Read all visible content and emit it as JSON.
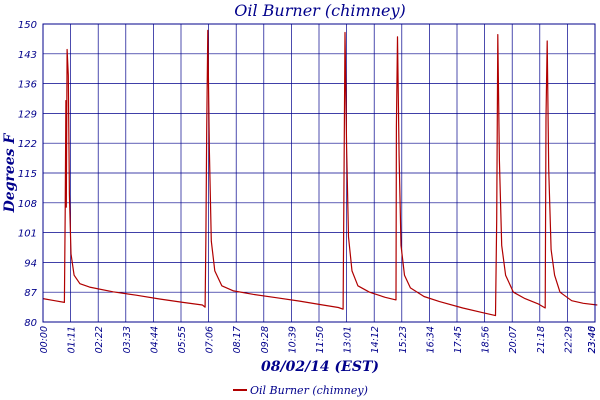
{
  "chart_data": {
    "type": "line",
    "title": "Oil Burner (chimney)",
    "xlabel": "08/02/14 (EST)",
    "ylabel": "Degrees F",
    "ylim": [
      80,
      150
    ],
    "xlim": [
      "00:00",
      "23:40"
    ],
    "x_ticks": [
      "00:00",
      "01:11",
      "02:22",
      "03:33",
      "04:44",
      "05:55",
      "07:06",
      "08:17",
      "09:28",
      "10:39",
      "11:50",
      "13:01",
      "14:12",
      "15:23",
      "16:34",
      "17:45",
      "18:56",
      "20:07",
      "21:18",
      "22:29",
      "23:40",
      "23:46"
    ],
    "y_ticks": [
      80,
      87,
      94,
      101,
      108,
      115,
      122,
      129,
      136,
      143,
      150
    ],
    "grid": true,
    "legend": "bottom",
    "colors": {
      "series": "#b00000",
      "axis": "#00008b",
      "grid": "#00008b"
    },
    "series": [
      {
        "name": "Oil Burner (chimney)",
        "points": [
          [
            "00:00",
            85.5
          ],
          [
            "00:30",
            85.0
          ],
          [
            "00:55",
            84.6
          ],
          [
            "00:57",
            106
          ],
          [
            "00:59",
            132
          ],
          [
            "01:00",
            107
          ],
          [
            "01:02",
            144
          ],
          [
            "01:05",
            138
          ],
          [
            "01:08",
            110
          ],
          [
            "01:12",
            96
          ],
          [
            "01:20",
            91
          ],
          [
            "01:35",
            89
          ],
          [
            "02:00",
            88.2
          ],
          [
            "03:00",
            87.1
          ],
          [
            "04:00",
            86.3
          ],
          [
            "05:00",
            85.4
          ],
          [
            "06:00",
            84.6
          ],
          [
            "06:50",
            84.0
          ],
          [
            "06:57",
            83.5
          ],
          [
            "06:59",
            100
          ],
          [
            "07:01",
            125
          ],
          [
            "07:04",
            148.5
          ],
          [
            "07:08",
            120
          ],
          [
            "07:13",
            99
          ],
          [
            "07:22",
            92
          ],
          [
            "07:40",
            88.5
          ],
          [
            "08:10",
            87.3
          ],
          [
            "09:00",
            86.5
          ],
          [
            "10:00",
            85.7
          ],
          [
            "11:00",
            84.9
          ],
          [
            "12:00",
            84.0
          ],
          [
            "12:40",
            83.4
          ],
          [
            "12:52",
            83.0
          ],
          [
            "12:54",
            110
          ],
          [
            "12:57",
            148
          ],
          [
            "13:01",
            121
          ],
          [
            "13:06",
            100
          ],
          [
            "13:15",
            92
          ],
          [
            "13:30",
            88.5
          ],
          [
            "14:00",
            87.0
          ],
          [
            "14:40",
            85.8
          ],
          [
            "15:08",
            85.2
          ],
          [
            "15:09",
            126
          ],
          [
            "15:12",
            147
          ],
          [
            "15:16",
            119
          ],
          [
            "15:21",
            98
          ],
          [
            "15:30",
            91
          ],
          [
            "15:45",
            88
          ],
          [
            "16:20",
            86.0
          ],
          [
            "17:00",
            84.8
          ],
          [
            "18:00",
            83.3
          ],
          [
            "18:50",
            82.2
          ],
          [
            "19:24",
            81.5
          ],
          [
            "19:27",
            104
          ],
          [
            "19:30",
            147.5
          ],
          [
            "19:34",
            118
          ],
          [
            "19:40",
            98
          ],
          [
            "19:50",
            91
          ],
          [
            "20:10",
            87.0
          ],
          [
            "20:40",
            85.5
          ],
          [
            "21:15",
            84.2
          ],
          [
            "21:32",
            83.3
          ],
          [
            "21:34",
            128
          ],
          [
            "21:37",
            146
          ],
          [
            "21:41",
            116
          ],
          [
            "21:47",
            97
          ],
          [
            "21:56",
            91
          ],
          [
            "22:10",
            87.0
          ],
          [
            "22:40",
            85.0
          ],
          [
            "23:10",
            84.4
          ],
          [
            "23:46",
            84.0
          ]
        ]
      }
    ]
  }
}
